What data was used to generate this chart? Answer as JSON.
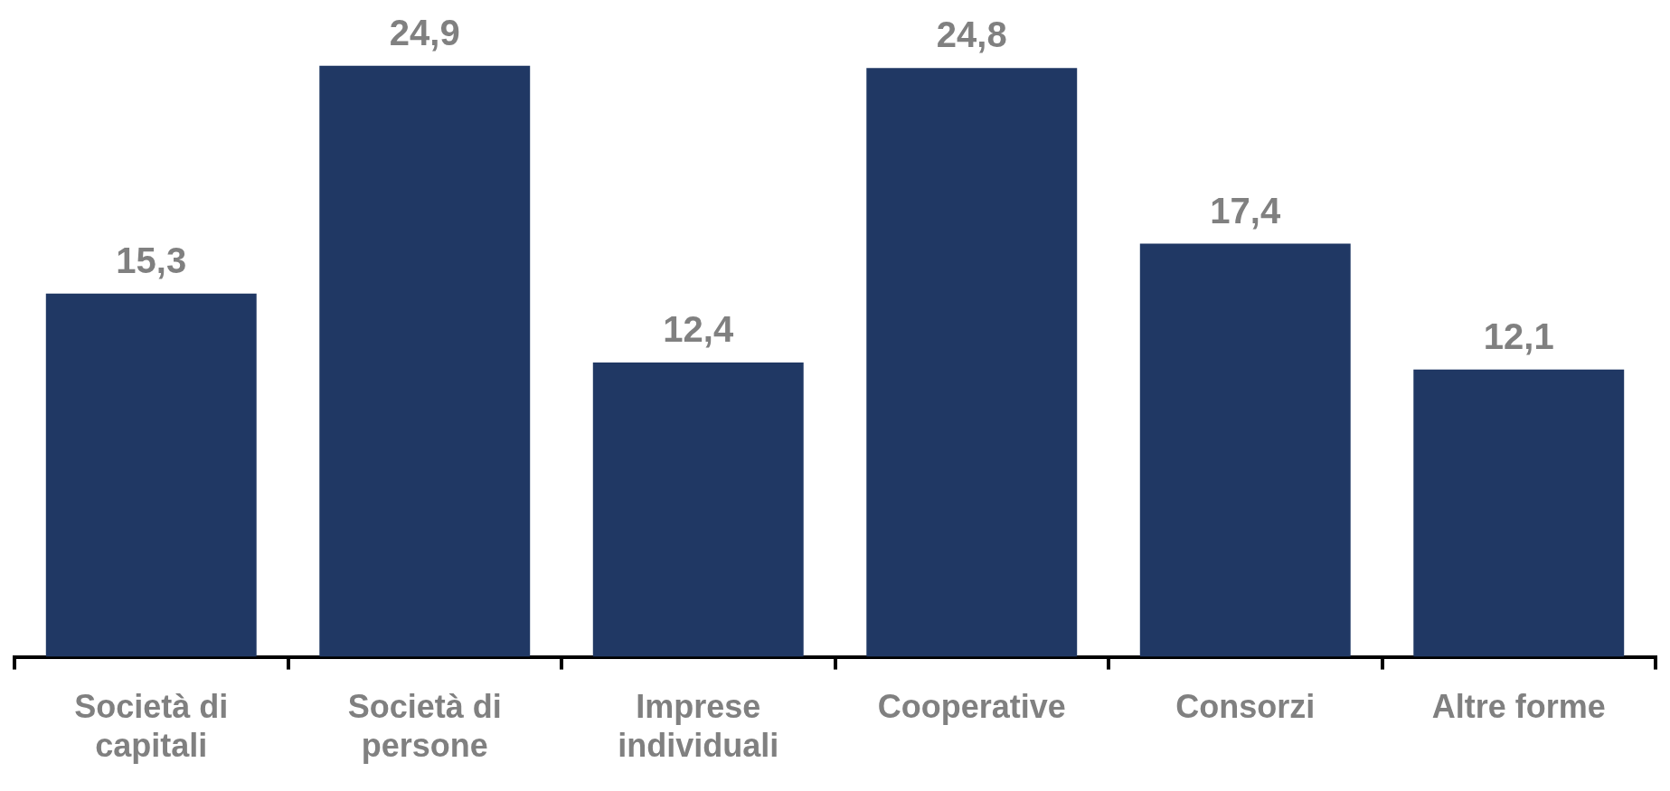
{
  "chart_data": {
    "type": "bar",
    "categories": [
      "Società di capitali",
      "Società di persone",
      "Imprese individuali",
      "Cooperative",
      "Consorzi",
      "Altre forme"
    ],
    "values": [
      15.3,
      24.9,
      12.4,
      24.8,
      17.4,
      12.1
    ],
    "value_labels": [
      "15,3",
      "24,9",
      "12,4",
      "24,8",
      "17,4",
      "12,1"
    ],
    "color": "#203864",
    "grid": false,
    "legend": false
  }
}
